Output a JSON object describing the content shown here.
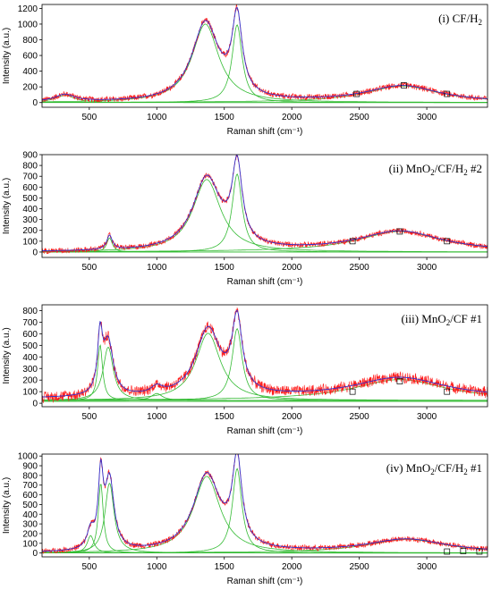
{
  "colors": {
    "measured": "#ff1a1a",
    "fit_sum": "#3333cc",
    "components": "#33bb33",
    "frame": "#000000"
  },
  "chart_data": [
    {
      "type": "line",
      "title": "(i) CF/H",
      "title_sub": "2",
      "title_tail": "",
      "xlabel": "Raman shift (cm⁻¹)",
      "ylabel": "Intensity (a.u.)",
      "xlim": [
        150,
        3450
      ],
      "ylim": [
        -60,
        1250
      ],
      "xticks": [
        500,
        1000,
        1500,
        2000,
        2500,
        3000
      ],
      "yticks": [
        0,
        200,
        400,
        600,
        800,
        1000,
        1200
      ],
      "peaks": [
        {
          "center": 320,
          "height": 90,
          "width": 90
        },
        {
          "center": 1360,
          "height": 1000,
          "width": 120
        },
        {
          "center": 1595,
          "height": 990,
          "width": 45
        },
        {
          "center": 2820,
          "height": 210,
          "width": 330
        }
      ],
      "noise": 45,
      "markers": [
        {
          "x": 2480,
          "y": 110
        },
        {
          "x": 2830,
          "y": 220
        },
        {
          "x": 3150,
          "y": 110
        }
      ]
    },
    {
      "type": "line",
      "title": "(ii) MnO",
      "title_sub": "2",
      "title_tail": "/CF/H",
      "title_sub2": "2",
      "title_end": " #2",
      "xlabel": "Raman shift (cm⁻¹)",
      "ylabel": "Intensity (a.u.)",
      "xlim": [
        150,
        3450
      ],
      "ylim": [
        -50,
        900
      ],
      "xticks": [
        500,
        1000,
        1500,
        2000,
        2500,
        3000
      ],
      "yticks": [
        0,
        100,
        200,
        300,
        400,
        500,
        600,
        700,
        800,
        900
      ],
      "peaks": [
        {
          "center": 650,
          "height": 130,
          "width": 25
        },
        {
          "center": 1370,
          "height": 670,
          "width": 125
        },
        {
          "center": 1595,
          "height": 720,
          "width": 45
        },
        {
          "center": 2800,
          "height": 190,
          "width": 380
        }
      ],
      "noise": 30,
      "markers": [
        {
          "x": 2450,
          "y": 100
        },
        {
          "x": 2800,
          "y": 190
        },
        {
          "x": 3150,
          "y": 100
        }
      ]
    },
    {
      "type": "line",
      "title": "(iii) MnO",
      "title_sub": "2",
      "title_tail": "/CF #1",
      "title_sub2": "",
      "title_end": "",
      "xlabel": "Raman shift (cm⁻¹)",
      "ylabel": "Intensity (a.u.)",
      "xlim": [
        150,
        3450
      ],
      "ylim": [
        -30,
        850
      ],
      "xticks": [
        500,
        1000,
        1500,
        2000,
        2500,
        3000
      ],
      "yticks": [
        0,
        100,
        200,
        300,
        400,
        500,
        600,
        700,
        800
      ],
      "peaks": [
        {
          "center": 580,
          "height": 480,
          "width": 22
        },
        {
          "center": 640,
          "height": 460,
          "width": 45
        },
        {
          "center": 1000,
          "height": 60,
          "width": 50
        },
        {
          "center": 1380,
          "height": 580,
          "width": 110
        },
        {
          "center": 1595,
          "height": 620,
          "width": 45
        },
        {
          "center": 2800,
          "height": 180,
          "width": 420
        }
      ],
      "baseline": 40,
      "noise": 55,
      "markers": [
        {
          "x": 2450,
          "y": 100
        },
        {
          "x": 2800,
          "y": 190
        },
        {
          "x": 3150,
          "y": 100
        }
      ]
    },
    {
      "type": "line",
      "title": "(iv) MnO",
      "title_sub": "2",
      "title_tail": "/CF/H",
      "title_sub2": "2",
      "title_end": " #1",
      "xlabel": "Raman shift (cm⁻¹)",
      "ylabel": "Intensity (a.u.)",
      "xlim": [
        150,
        3450
      ],
      "ylim": [
        -40,
        1020
      ],
      "xticks": [
        500,
        1000,
        1500,
        2000,
        2500,
        3000
      ],
      "yticks": [
        0,
        100,
        200,
        300,
        400,
        500,
        600,
        700,
        800,
        900,
        1000
      ],
      "peaks": [
        {
          "center": 510,
          "height": 180,
          "width": 30
        },
        {
          "center": 585,
          "height": 720,
          "width": 22
        },
        {
          "center": 650,
          "height": 720,
          "width": 40
        },
        {
          "center": 1370,
          "height": 790,
          "width": 120
        },
        {
          "center": 1595,
          "height": 870,
          "width": 42
        },
        {
          "center": 2850,
          "height": 140,
          "width": 360
        }
      ],
      "noise": 35,
      "markers": [
        {
          "x": 3150,
          "y": 15
        },
        {
          "x": 3270,
          "y": 20
        },
        {
          "x": 3390,
          "y": 15
        }
      ]
    }
  ]
}
